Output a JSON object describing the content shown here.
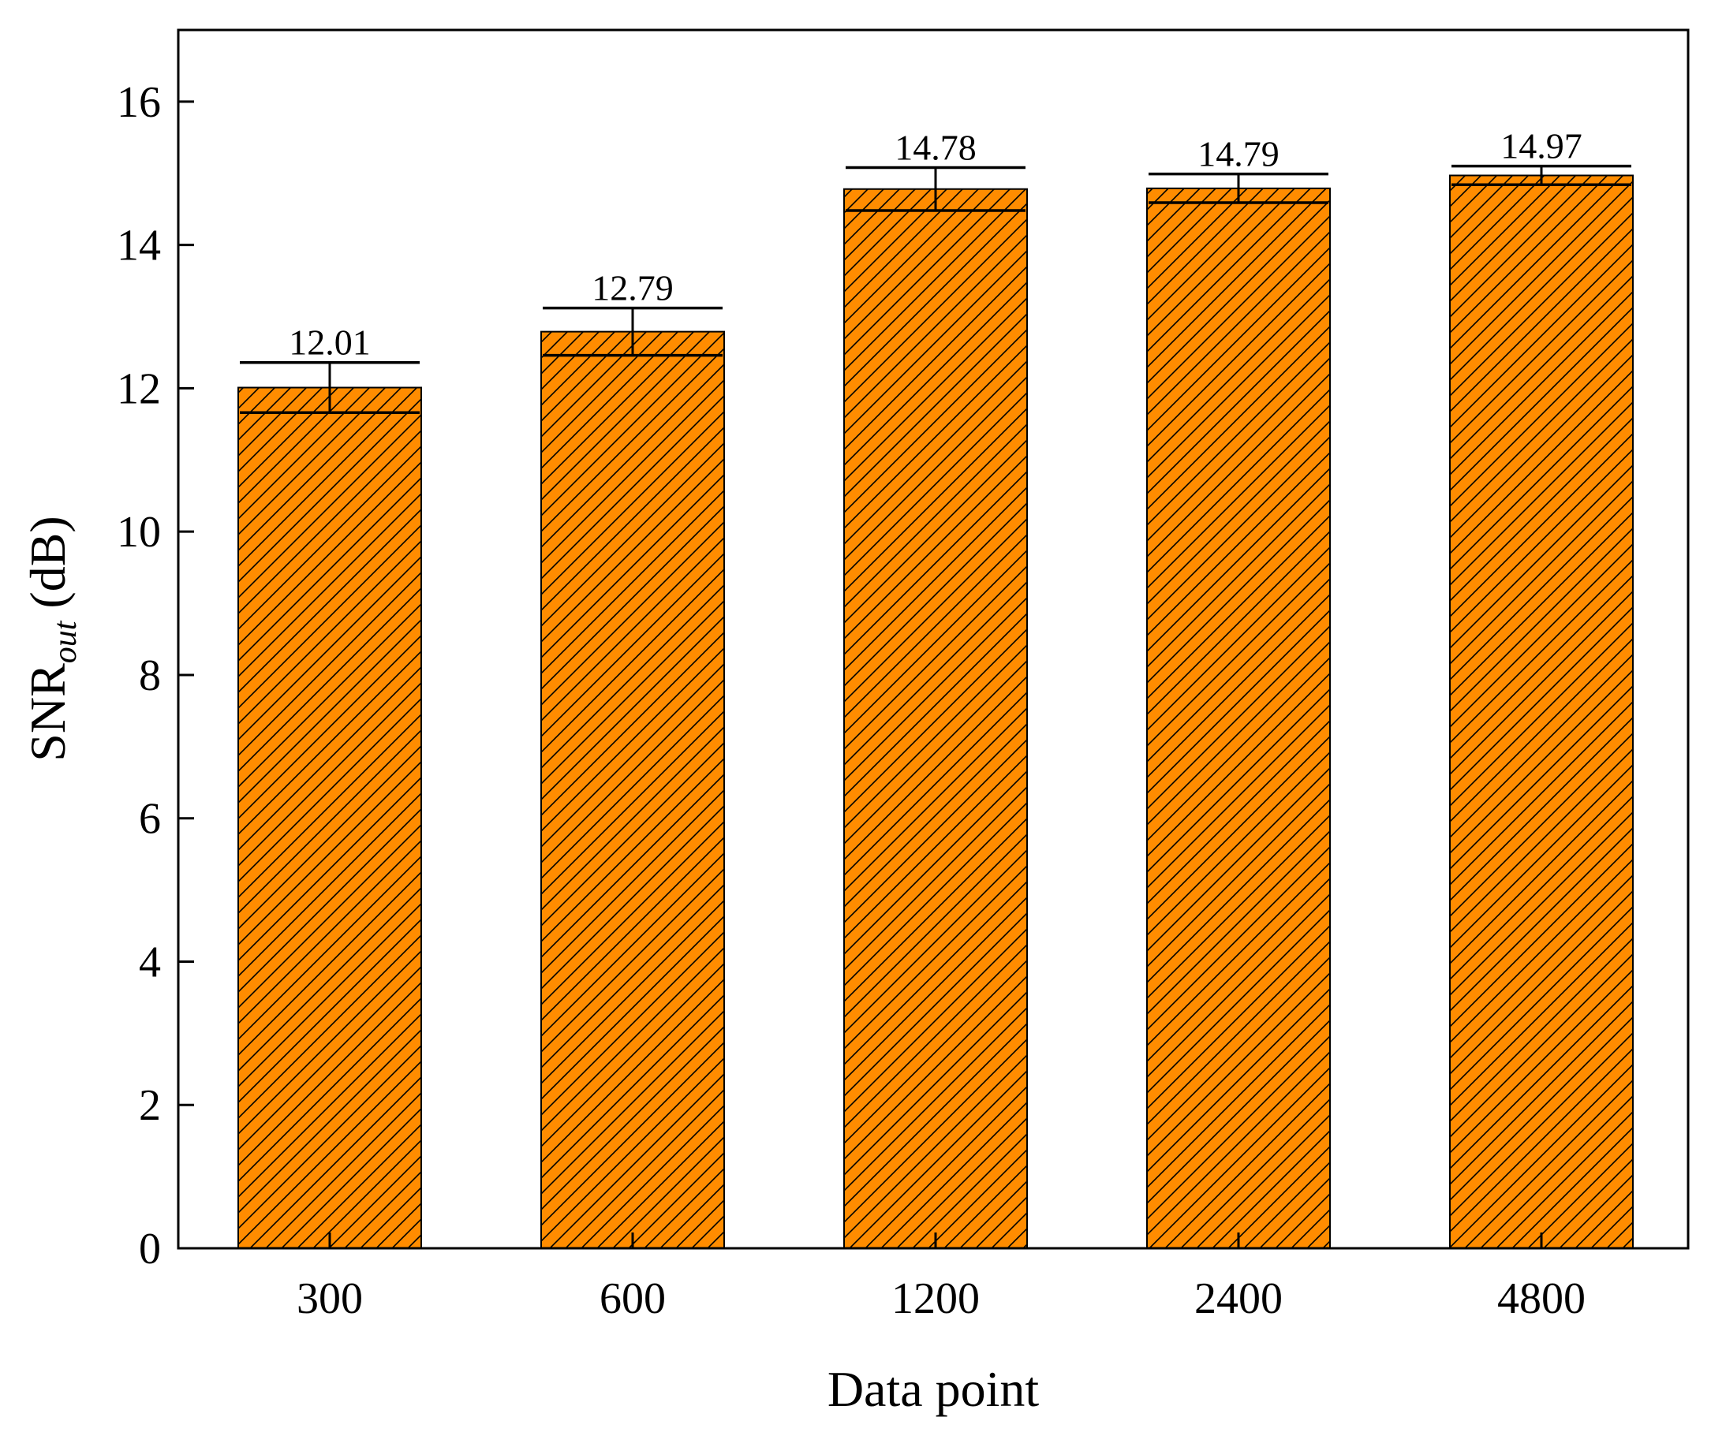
{
  "chart_data": {
    "type": "bar",
    "categories": [
      "300",
      "600",
      "1200",
      "2400",
      "4800"
    ],
    "values": [
      12.01,
      12.79,
      14.78,
      14.79,
      14.97
    ],
    "error_bars": [
      0.35,
      0.33,
      0.3,
      0.2,
      0.13
    ],
    "data_labels": [
      "12.01",
      "12.79",
      "14.78",
      "14.79",
      "14.97"
    ],
    "title": "",
    "xlabel": "Data point",
    "ylabel": {
      "main": "SNR",
      "subscript": "out",
      "unit": " (dB)"
    },
    "ylim": [
      0,
      17
    ],
    "yticks": [
      0,
      2,
      4,
      6,
      8,
      10,
      12,
      14,
      16
    ],
    "ytick_labels": [
      "0",
      "2",
      "4",
      "6",
      "8",
      "10",
      "12",
      "14",
      "16"
    ],
    "grid": false,
    "legend": "none",
    "bar_fill": "#FF8C00",
    "bar_hatch": "diagonal",
    "hatch_color": "#000000"
  }
}
